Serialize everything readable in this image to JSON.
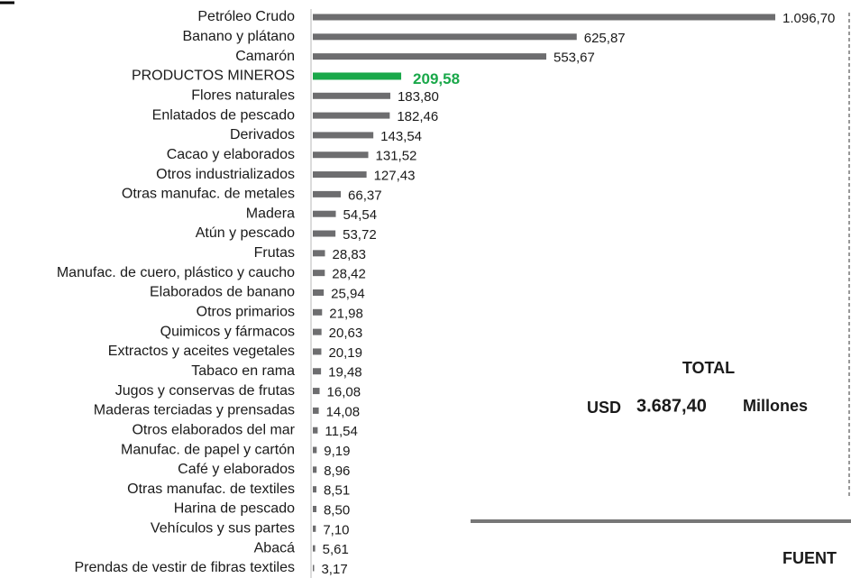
{
  "chart_data": {
    "type": "barh",
    "categories": [
      "Petróleo Crudo",
      "Banano y plátano",
      "Camarón",
      "PRODUCTOS MINEROS",
      "Flores naturales",
      "Enlatados de pescado",
      "Derivados",
      "Cacao y elaborados",
      "Otros industrializados",
      "Otras manufac. de metales",
      "Madera",
      "Atún y pescado",
      "Frutas",
      "Manufac. de cuero, plástico y caucho",
      "Elaborados de  banano",
      "Otros primarios",
      "Quimicos y fármacos",
      "Extractos y aceites vegetales",
      "Tabaco en rama",
      "Jugos y conservas de frutas",
      "Maderas terciadas y prensadas",
      "Otros elaborados del mar",
      "Manufac. de papel y cartón",
      "Café y elaborados",
      "Otras manufac. de textiles",
      "Harina de pescado",
      "Vehículos y sus partes",
      "Abacá",
      "Prendas de vestir de fibras textiles"
    ],
    "values": [
      1096.7,
      625.87,
      553.67,
      209.58,
      183.8,
      182.46,
      143.54,
      131.52,
      127.43,
      66.37,
      54.54,
      53.72,
      28.83,
      28.42,
      25.94,
      21.98,
      20.63,
      20.19,
      19.48,
      16.08,
      14.08,
      11.54,
      9.19,
      8.96,
      8.51,
      8.5,
      7.1,
      5.61,
      3.17
    ],
    "value_labels": [
      "1.096,70",
      "625,87",
      "553,67",
      "209,58",
      "183,80",
      "182,46",
      "143,54",
      "131,52",
      "127,43",
      "66,37",
      "54,54",
      "53,72",
      "28,83",
      "28,42",
      "25,94",
      "21,98",
      "20,63",
      "20,19",
      "19,48",
      "16,08",
      "14,08",
      "11,54",
      "9,19",
      "8,96",
      "8,51",
      "8,50",
      "7,10",
      "5,61",
      "3,17"
    ],
    "colors": [
      "#6d6d6f",
      "#6d6d6f",
      "#6d6d6f",
      "#1aa84a",
      "#6d6d6f",
      "#6d6d6f",
      "#6d6d6f",
      "#6d6d6f",
      "#6d6d6f",
      "#6d6d6f",
      "#6d6d6f",
      "#6d6d6f",
      "#6d6d6f",
      "#6d6d6f",
      "#6d6d6f",
      "#6d6d6f",
      "#6d6d6f",
      "#6d6d6f",
      "#6d6d6f",
      "#6d6d6f",
      "#6d6d6f",
      "#6d6d6f",
      "#6d6d6f",
      "#6d6d6f",
      "#6d6d6f",
      "#6d6d6f",
      "#6d6d6f",
      "#6d6d6f",
      "#6d6d6f"
    ],
    "annotations": [
      "TOTAL",
      "USD",
      "3.687,40",
      "Millones"
    ],
    "source": "FUENT"
  }
}
